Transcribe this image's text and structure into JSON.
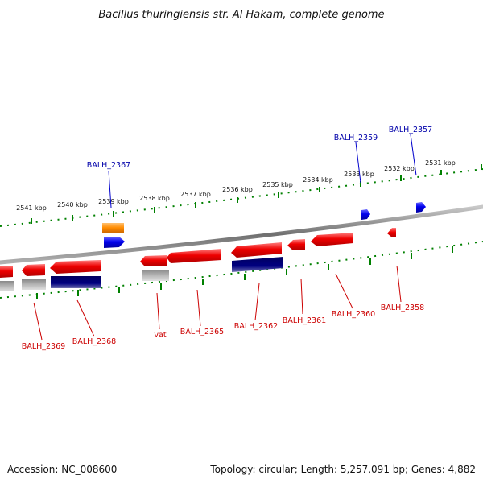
{
  "title": "Bacillus thuringiensis str. Al Hakam, complete genome",
  "footer": {
    "accession": "Accession: NC_008600",
    "summary": "Topology: circular; Length: 5,257,091 bp; Genes: 4,882"
  },
  "ticks": [
    "2541 kbp",
    "2540 kbp",
    "2539 kbp",
    "2538 kbp",
    "2537 kbp",
    "2536 kbp",
    "2535 kbp",
    "2534 kbp",
    "2533 kbp",
    "2532 kbp",
    "2531 kbp"
  ],
  "gene_labels_top": [
    "BALH_2367",
    "BALH_2359",
    "BALH_2357"
  ],
  "gene_labels_bottom": [
    "BALH_2369",
    "BALH_2368",
    "vat",
    "BALH_2365",
    "BALH_2362",
    "BALH_2361",
    "BALH_2360",
    "BALH_2358"
  ],
  "colors": {
    "cds": "#ee0000",
    "gene_blue": "#0000ee",
    "orf": "#ff8c00",
    "navy": "#000080",
    "gray": "#a9a9a9",
    "tick": "#008000",
    "backbone": "#808080"
  }
}
